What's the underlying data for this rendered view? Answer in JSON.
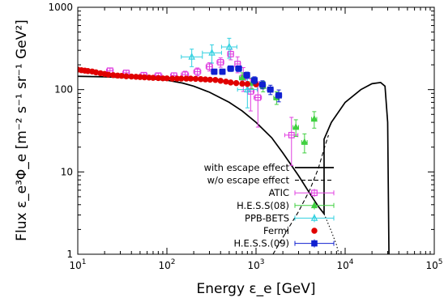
{
  "chart_data": {
    "type": "scatter",
    "title": "",
    "xlabel": "Energy ε_e [GeV]",
    "ylabel": "Flux ε_e³Φ_e [m⁻² s⁻¹ sr⁻¹ GeV²]",
    "xscale": "log",
    "yscale": "log",
    "xlim": [
      10,
      100000
    ],
    "ylim": [
      1,
      1000
    ],
    "grid": false,
    "legend": "center-right",
    "x_ticks": [
      {
        "value": 10,
        "base": "10",
        "exp": "1"
      },
      {
        "value": 100,
        "base": "10",
        "exp": "2"
      },
      {
        "value": 1000,
        "base": "10",
        "exp": "3"
      },
      {
        "value": 10000,
        "base": "10",
        "exp": "4"
      },
      {
        "value": 100000,
        "base": "10",
        "exp": "5"
      }
    ],
    "y_ticks": [
      {
        "value": 1,
        "label": "1"
      },
      {
        "value": 10,
        "label": "10"
      },
      {
        "value": 100,
        "label": "100"
      },
      {
        "value": 1000,
        "label": "1000"
      }
    ],
    "series": [
      {
        "name": "with escape effect",
        "kind": "line",
        "style": "solid",
        "color": "#000000",
        "points": [
          [
            10,
            145
          ],
          [
            20,
            143
          ],
          [
            50,
            138
          ],
          [
            100,
            130
          ],
          [
            150,
            120
          ],
          [
            200,
            110
          ],
          [
            300,
            93
          ],
          [
            500,
            70
          ],
          [
            700,
            55
          ],
          [
            1000,
            40
          ],
          [
            1500,
            26
          ],
          [
            2000,
            17
          ],
          [
            3000,
            9
          ],
          [
            4000,
            5.5
          ],
          [
            5000,
            3.8
          ],
          [
            5800,
            3.1
          ],
          [
            5800,
            25
          ],
          [
            7000,
            40
          ],
          [
            10000,
            70
          ],
          [
            15000,
            100
          ],
          [
            20000,
            118
          ],
          [
            25000,
            122
          ],
          [
            28000,
            110
          ],
          [
            30000,
            40
          ],
          [
            31000,
            1
          ]
        ]
      },
      {
        "name": "w/o escape effect",
        "kind": "line",
        "style": "dashed",
        "color": "#000000",
        "points": [
          [
            1550,
            1
          ],
          [
            2000,
            1.6
          ],
          [
            3000,
            3.3
          ],
          [
            4000,
            6
          ],
          [
            5000,
            11
          ],
          [
            5800,
            19
          ],
          [
            6500,
            28
          ]
        ]
      },
      {
        "name": "",
        "kind": "line",
        "style": "dotted",
        "color": "#000000",
        "points": [
          [
            5800,
            3.1
          ],
          [
            7000,
            1.9
          ],
          [
            8000,
            1.3
          ],
          [
            8500,
            1
          ]
        ]
      },
      {
        "name": "ATIC",
        "kind": "errorbar",
        "marker": "square-open",
        "color": "#e040e0",
        "points": [
          {
            "x": 23,
            "y": 170,
            "yerr": 12,
            "xerr": [
              21,
              25
            ]
          },
          {
            "x": 35,
            "y": 160,
            "yerr": 12,
            "xerr": [
              32,
              38
            ]
          },
          {
            "x": 55,
            "y": 150,
            "yerr": 10,
            "xerr": [
              50,
              60
            ]
          },
          {
            "x": 80,
            "y": 148,
            "yerr": 10,
            "xerr": [
              73,
              88
            ]
          },
          {
            "x": 120,
            "y": 148,
            "yerr": 12,
            "xerr": [
              110,
              130
            ]
          },
          {
            "x": 160,
            "y": 152,
            "yerr": 15,
            "xerr": [
              145,
              175
            ]
          },
          {
            "x": 220,
            "y": 165,
            "yerr": 18,
            "xerr": [
              200,
              240
            ]
          },
          {
            "x": 300,
            "y": 190,
            "yerr": 22,
            "xerr": [
              275,
              325
            ]
          },
          {
            "x": 400,
            "y": 215,
            "yerr": 28,
            "xerr": [
              365,
              435
            ]
          },
          {
            "x": 520,
            "y": 270,
            "yerr": 40,
            "xerr": [
              480,
              560
            ]
          },
          {
            "x": 620,
            "y": 205,
            "yerr": 45,
            "xerr": [
              580,
              670
            ]
          },
          {
            "x": 720,
            "y": 140,
            "yerr": 45,
            "xerr": [
              670,
              780
            ]
          },
          {
            "x": 870,
            "y": 95,
            "yerr": 40,
            "xerr": [
              800,
              950
            ]
          },
          {
            "x": 1050,
            "y": 80,
            "yerr": 45,
            "xerr": [
              950,
              1150
            ]
          },
          {
            "x": 2500,
            "y": 28,
            "yerr": [
              16,
              18
            ],
            "xerr": [
              2100,
              2950
            ]
          }
        ]
      },
      {
        "name": "H.E.S.S(08)",
        "kind": "errorbar",
        "marker": "triangle-filled",
        "color": "#40d040",
        "points": [
          {
            "x": 700,
            "y": 140,
            "yerr": 20,
            "xerr": [
              650,
              750
            ]
          },
          {
            "x": 900,
            "y": 120,
            "yerr": 18,
            "xerr": [
              840,
              960
            ]
          },
          {
            "x": 1200,
            "y": 110,
            "yerr": 16,
            "xerr": [
              1120,
              1280
            ]
          },
          {
            "x": 1700,
            "y": 80,
            "yerr": 14,
            "xerr": [
              1580,
              1820
            ]
          },
          {
            "x": 2800,
            "y": 35,
            "yerr": 8,
            "xerr": [
              2600,
              3000
            ]
          },
          {
            "x": 3500,
            "y": 23,
            "yerr": 6,
            "xerr": [
              3250,
              3750
            ]
          },
          {
            "x": 4500,
            "y": 44,
            "yerr": 10,
            "xerr": [
              4200,
              4800
            ]
          }
        ]
      },
      {
        "name": "PPB-BETS",
        "kind": "errorbar",
        "marker": "triangle-open",
        "color": "#30d0e0",
        "points": [
          {
            "x": 190,
            "y": 250,
            "yerr": 60,
            "xerr": [
              145,
              250
            ]
          },
          {
            "x": 320,
            "y": 280,
            "yerr": 70,
            "xerr": [
              250,
              410
            ]
          },
          {
            "x": 500,
            "y": 330,
            "yerr": 90,
            "xerr": [
              410,
              610
            ]
          },
          {
            "x": 800,
            "y": 100,
            "yerr": 40,
            "xerr": [
              620,
              1030
            ]
          }
        ]
      },
      {
        "name": "Fermi",
        "kind": "points",
        "marker": "circle-filled",
        "color": "#e00000",
        "points": [
          [
            10,
            175
          ],
          [
            11,
            172
          ],
          [
            12,
            170
          ],
          [
            13,
            168
          ],
          [
            14.5,
            166
          ],
          [
            16,
            162
          ],
          [
            18,
            158
          ],
          [
            20,
            155
          ],
          [
            22,
            152
          ],
          [
            25,
            150
          ],
          [
            28,
            148
          ],
          [
            31,
            147
          ],
          [
            35,
            145
          ],
          [
            40,
            144
          ],
          [
            45,
            143
          ],
          [
            50,
            142
          ],
          [
            56,
            141
          ],
          [
            63,
            140
          ],
          [
            70,
            139
          ],
          [
            80,
            138
          ],
          [
            90,
            137
          ],
          [
            100,
            137
          ],
          [
            115,
            136
          ],
          [
            130,
            136
          ],
          [
            145,
            136
          ],
          [
            165,
            136
          ],
          [
            185,
            136
          ],
          [
            210,
            135
          ],
          [
            240,
            134
          ],
          [
            270,
            133
          ],
          [
            305,
            132
          ],
          [
            350,
            131
          ],
          [
            400,
            128
          ],
          [
            460,
            125
          ],
          [
            520,
            122
          ],
          [
            600,
            120
          ],
          [
            700,
            118
          ],
          [
            800,
            117
          ],
          [
            1000,
            116
          ]
        ]
      },
      {
        "name": "H.E.S.S.(09)",
        "kind": "errorbar",
        "marker": "square-filled",
        "color": "#1020d0",
        "points": [
          {
            "x": 340,
            "y": 165,
            "yerr": 12,
            "xerr": [
              315,
              365
            ]
          },
          {
            "x": 420,
            "y": 165,
            "yerr": 12,
            "xerr": [
              390,
              450
            ]
          },
          {
            "x": 520,
            "y": 180,
            "yerr": 14,
            "xerr": [
              480,
              560
            ]
          },
          {
            "x": 640,
            "y": 180,
            "yerr": 14,
            "xerr": [
              590,
              690
            ]
          },
          {
            "x": 790,
            "y": 150,
            "yerr": 13,
            "xerr": [
              730,
              850
            ]
          },
          {
            "x": 960,
            "y": 130,
            "yerr": 13,
            "xerr": [
              890,
              1030
            ]
          },
          {
            "x": 1180,
            "y": 115,
            "yerr": 13,
            "xerr": [
              1090,
              1270
            ]
          },
          {
            "x": 1450,
            "y": 100,
            "yerr": 13,
            "xerr": [
              1340,
              1560
            ]
          },
          {
            "x": 1800,
            "y": 85,
            "yerr": 14,
            "xerr": [
              1660,
              1940
            ]
          }
        ]
      }
    ]
  }
}
